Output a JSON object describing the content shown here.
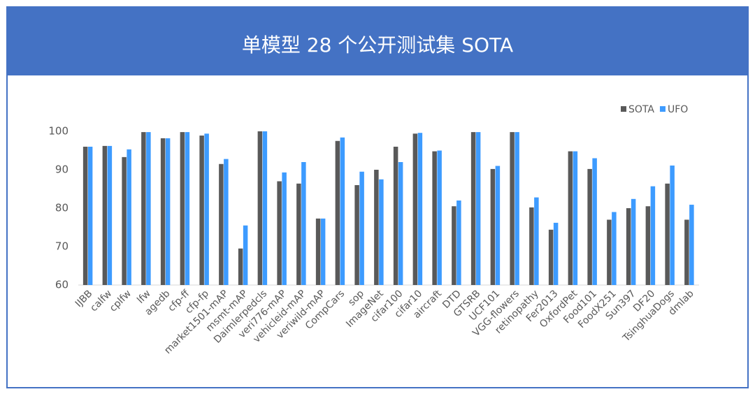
{
  "chart_data": {
    "type": "bar",
    "title": "单模型 28 个公开测试集 SOTA",
    "categories": [
      "IJBB",
      "calfw",
      "cplfw",
      "lfw",
      "agedb",
      "cfp-ff",
      "cfp-fp",
      "market1501-mAP",
      "msmt-mAP",
      "Daimlerpedcls",
      "veri776-mAP",
      "vehicleid-mAP",
      "veriwild-mAP",
      "CompCars",
      "sop",
      "ImageNet",
      "cifar100",
      "cifar10",
      "aircraft",
      "DTD",
      "GTSRB",
      "UCF101",
      "VGG-flowers",
      "retinopathy",
      "Fer2013",
      "OxfordPet",
      "Food101",
      "FoodX251",
      "Sun397",
      "DF20",
      "TsinghuaDogs",
      "dmlab"
    ],
    "series": [
      {
        "name": "SOTA",
        "color": "#595959",
        "values": [
          96,
          96.2,
          93.3,
          99.8,
          98.2,
          99.8,
          98.9,
          91.5,
          69.5,
          100,
          87,
          86.4,
          77.3,
          97.5,
          86,
          90,
          96,
          99.4,
          94.8,
          80.5,
          99.8,
          90.2,
          99.8,
          80.2,
          74.4,
          94.8,
          90.2,
          77,
          80,
          80.5,
          86.4,
          77
        ]
      },
      {
        "name": "UFO",
        "color": "#3d9bff",
        "values": [
          96,
          96.2,
          95.3,
          99.8,
          98.2,
          99.8,
          99.4,
          92.8,
          75.5,
          100,
          89.3,
          92,
          77.3,
          98.4,
          89.5,
          87.5,
          92,
          99.6,
          95,
          82,
          99.8,
          91,
          99.8,
          82.8,
          76.2,
          94.8,
          93,
          79,
          82.4,
          85.7,
          91.1,
          80.9
        ]
      }
    ],
    "ylim": [
      60,
      100
    ],
    "yticks": [
      60,
      70,
      80,
      90,
      100
    ],
    "legend": "top-right"
  }
}
